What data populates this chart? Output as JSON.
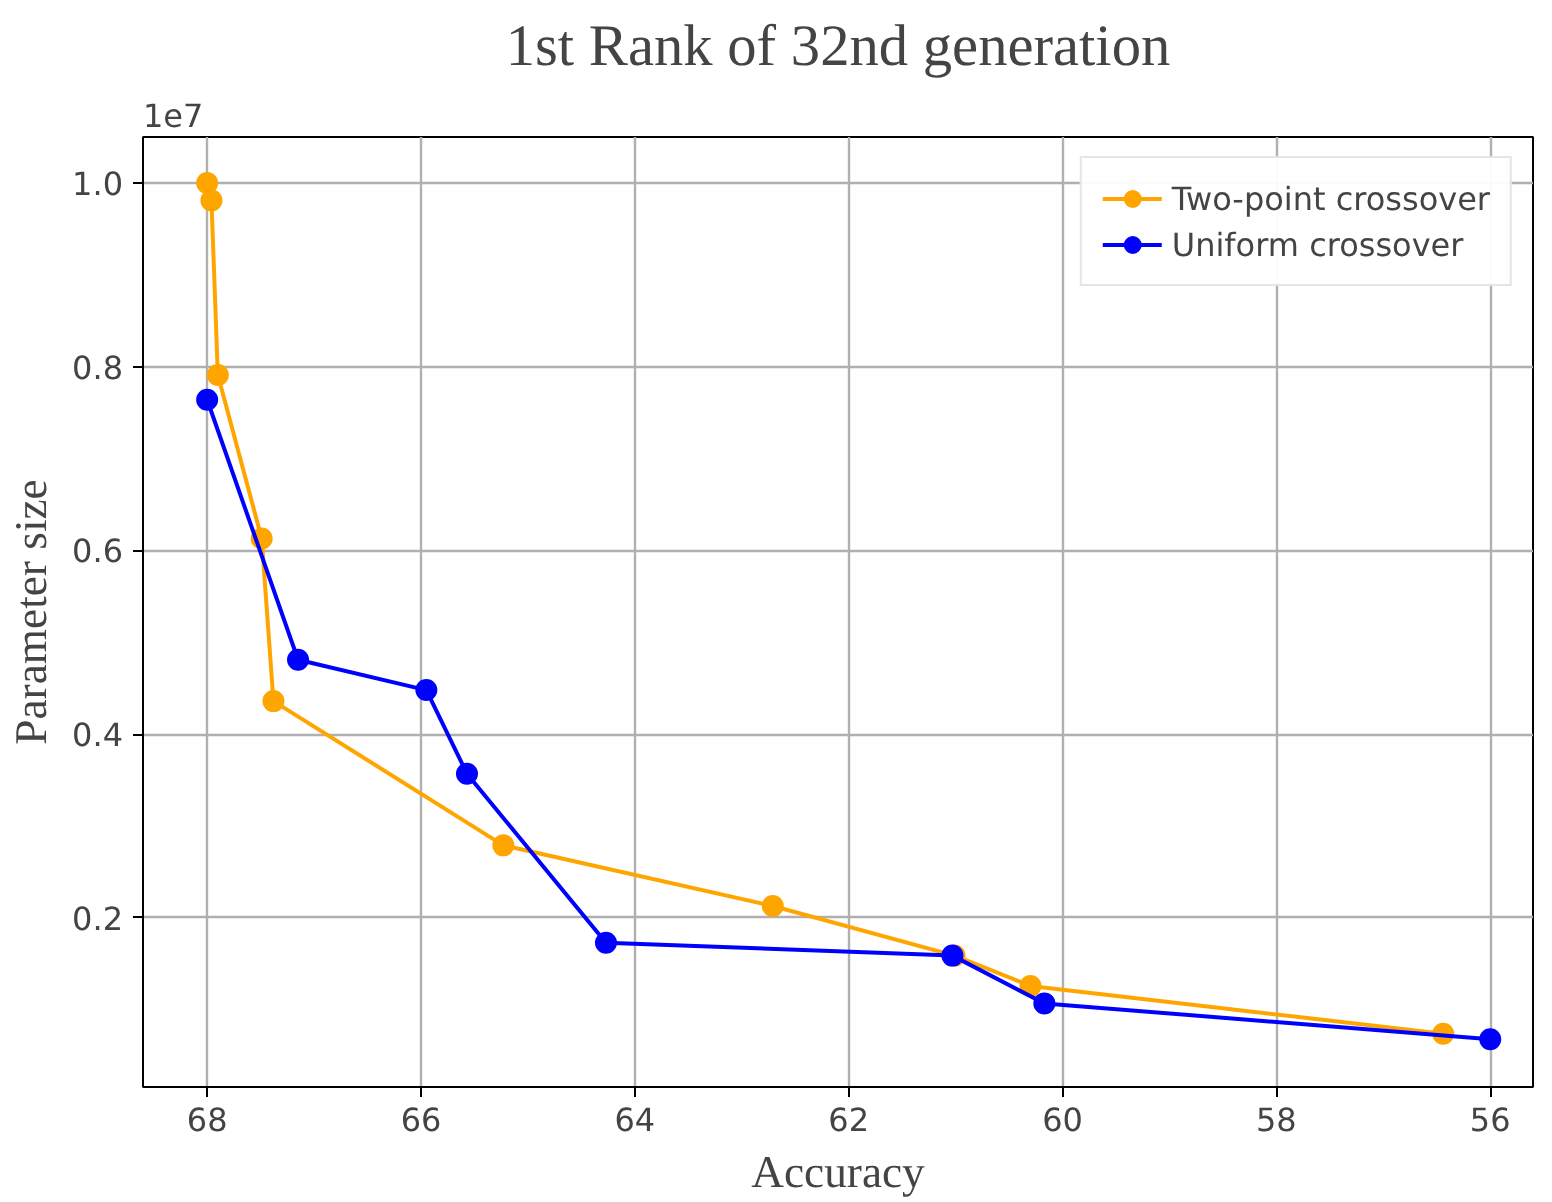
{
  "chart_data": {
    "type": "line",
    "title": "1st Rank of 32nd generation",
    "xlabel": "Accuracy",
    "ylabel": "Parameter size",
    "annotations": [
      "1e7"
    ],
    "xlim": [
      68.6,
      55.6
    ],
    "xticks": [
      68,
      66,
      64,
      62,
      60,
      58,
      56
    ],
    "ylim": [
      0.016,
      1.05
    ],
    "yticks": [
      0.2,
      0.4,
      0.6,
      0.8,
      {
        "value": 1.0,
        "label": "1.0"
      }
    ],
    "grid": true,
    "legend": "top right",
    "marker": "circle",
    "line_style": "solid",
    "series": [
      {
        "name": "Two-point crossover",
        "color": "#ffa500",
        "x": [
          68.0,
          67.96,
          67.9,
          67.49,
          67.38,
          65.23,
          62.71,
          61.01,
          60.3,
          56.44
        ],
        "values": [
          1.0,
          0.981,
          0.791,
          0.613,
          0.436,
          0.279,
          0.213,
          0.159,
          0.126,
          0.074
        ]
      },
      {
        "name": "Uniform crossover",
        "color": "#0000ff",
        "x": [
          68.0,
          67.15,
          65.95,
          65.57,
          64.27,
          61.03,
          60.17,
          56.0
        ],
        "values": [
          0.764,
          0.481,
          0.448,
          0.357,
          0.173,
          0.159,
          0.107,
          0.068
        ]
      }
    ]
  }
}
